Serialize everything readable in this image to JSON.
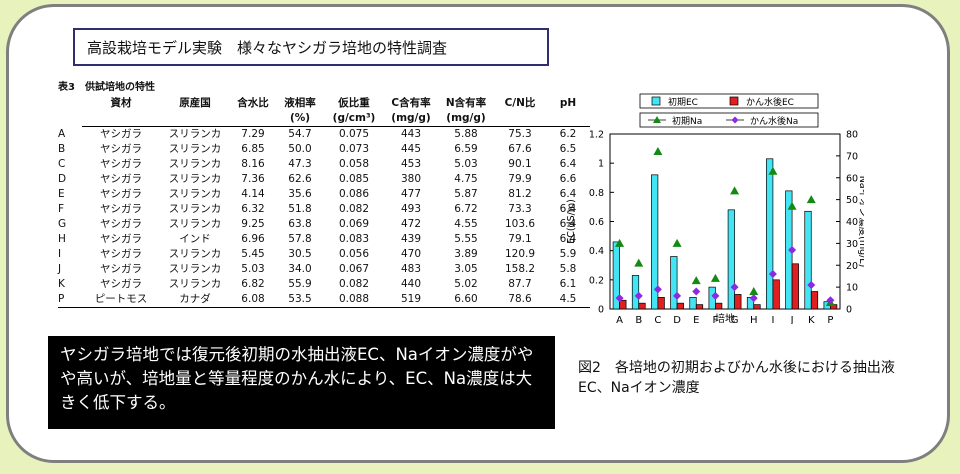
{
  "title": "高設栽培モデル実験　様々なヤシガラ培地の特性調査",
  "table": {
    "caption": "表3　供試培地の特性",
    "header": [
      {
        "key": "id",
        "label": "",
        "unit": ""
      },
      {
        "key": "material",
        "label": "資材",
        "unit": ""
      },
      {
        "key": "origin",
        "label": "原産国",
        "unit": ""
      },
      {
        "key": "water",
        "label": "含水比",
        "unit": ""
      },
      {
        "key": "liquid",
        "label": "液相率",
        "unit": "(%)"
      },
      {
        "key": "density",
        "label": "仮比重",
        "unit": "(g/cm³)"
      },
      {
        "key": "c",
        "label": "C含有率",
        "unit": "(mg/g)"
      },
      {
        "key": "n",
        "label": "N含有率",
        "unit": "(mg/g)"
      },
      {
        "key": "cn",
        "label": "C/N比",
        "unit": ""
      },
      {
        "key": "ph",
        "label": "pH",
        "unit": ""
      }
    ],
    "rows": [
      [
        "A",
        "ヤシガラ",
        "スリランカ",
        "7.29",
        "54.7",
        "0.075",
        "443",
        "5.88",
        "75.3",
        "6.2"
      ],
      [
        "B",
        "ヤシガラ",
        "スリランカ",
        "6.85",
        "50.0",
        "0.073",
        "445",
        "6.59",
        "67.6",
        "6.5"
      ],
      [
        "C",
        "ヤシガラ",
        "スリランカ",
        "8.16",
        "47.3",
        "0.058",
        "453",
        "5.03",
        "90.1",
        "6.4"
      ],
      [
        "D",
        "ヤシガラ",
        "スリランカ",
        "7.36",
        "62.6",
        "0.085",
        "380",
        "4.75",
        "79.9",
        "6.6"
      ],
      [
        "E",
        "ヤシガラ",
        "スリランカ",
        "4.14",
        "35.6",
        "0.086",
        "477",
        "5.87",
        "81.2",
        "6.4"
      ],
      [
        "F",
        "ヤシガラ",
        "スリランカ",
        "6.32",
        "51.8",
        "0.082",
        "493",
        "6.72",
        "73.3",
        "6.4"
      ],
      [
        "G",
        "ヤシガラ",
        "スリランカ",
        "9.25",
        "63.8",
        "0.069",
        "472",
        "4.55",
        "103.6",
        "6.4"
      ],
      [
        "H",
        "ヤシガラ",
        "インド",
        "6.96",
        "57.8",
        "0.083",
        "439",
        "5.55",
        "79.1",
        "6.4"
      ],
      [
        "I",
        "ヤシガラ",
        "スリランカ",
        "5.45",
        "30.5",
        "0.056",
        "470",
        "3.89",
        "120.9",
        "5.9"
      ],
      [
        "J",
        "ヤシガラ",
        "スリランカ",
        "5.03",
        "34.0",
        "0.067",
        "483",
        "3.05",
        "158.2",
        "5.8"
      ],
      [
        "K",
        "ヤシガラ",
        "スリランカ",
        "6.82",
        "55.9",
        "0.082",
        "440",
        "5.02",
        "87.7",
        "6.1"
      ],
      [
        "P",
        "ピートモス",
        "カナダ",
        "6.08",
        "53.5",
        "0.088",
        "519",
        "6.60",
        "78.6",
        "4.5"
      ]
    ]
  },
  "summary": "ヤシガラ培地では復元後初期の水抽出液EC、Naイオン濃度がやや高いが、培地量と等量程度のかん水により、EC、Na濃度は大きく低下する。",
  "figure_caption": "図2　各培地の初期およびかん水後における抽出液EC、Naイオン濃度",
  "chart_data": {
    "type": "bar",
    "categories": [
      "A",
      "B",
      "C",
      "D",
      "E",
      "F",
      "G",
      "H",
      "I",
      "J",
      "K",
      "P"
    ],
    "xlabel": "培地",
    "ylabel": "EC(dS/m)",
    "y2label": "Naイオン濃度(mg/L)",
    "ylim": [
      0,
      1.2
    ],
    "yticks": [
      "0",
      "0.2",
      "0.4",
      "0.6",
      "0.8",
      "1",
      "1.2"
    ],
    "y2lim": [
      0,
      80
    ],
    "y2ticks": [
      "0",
      "10",
      "20",
      "30",
      "40",
      "50",
      "60",
      "70",
      "80"
    ],
    "legend": "top",
    "series": [
      {
        "name": "初期EC",
        "kind": "bar",
        "axis": "left",
        "color": "#44e4f4",
        "values": [
          0.46,
          0.23,
          0.92,
          0.36,
          0.08,
          0.15,
          0.68,
          0.08,
          1.03,
          0.81,
          0.67,
          0.05
        ]
      },
      {
        "name": "かん水後EC",
        "kind": "bar",
        "axis": "left",
        "color": "#e02020",
        "values": [
          0.06,
          0.04,
          0.08,
          0.04,
          0.03,
          0.04,
          0.1,
          0.03,
          0.2,
          0.31,
          0.12,
          0.03
        ]
      },
      {
        "name": "初期Na",
        "kind": "marker",
        "marker": "triangle",
        "axis": "right",
        "color": "#138a13",
        "values": [
          30,
          21,
          72,
          30,
          13,
          14,
          54,
          8,
          63,
          47,
          50,
          3
        ]
      },
      {
        "name": "かん水後Na",
        "kind": "marker",
        "marker": "diamond",
        "axis": "right",
        "color": "#8a2be2",
        "values": [
          5,
          6,
          9,
          6,
          8,
          6,
          10,
          5,
          16,
          27,
          11,
          4
        ]
      }
    ]
  }
}
